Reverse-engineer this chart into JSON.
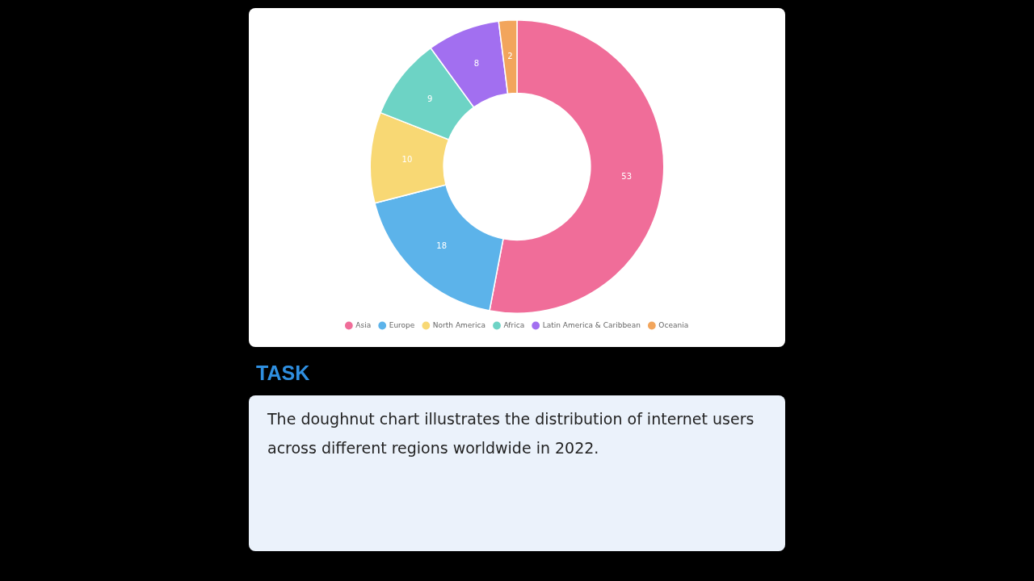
{
  "chart_data": {
    "type": "donut",
    "categories": [
      "Asia",
      "Europe",
      "North America",
      "Africa",
      "Latin America & Caribbean",
      "Oceania"
    ],
    "values": [
      53,
      18,
      10,
      9,
      8,
      2
    ],
    "colors": [
      "#f06d99",
      "#5cb3ea",
      "#f8d874",
      "#6dd3c5",
      "#a26ff0",
      "#f2a55c"
    ],
    "data_labels": true,
    "legend": "bottom",
    "annotations": [
      "TASK",
      "The doughnut chart illustrates the distribution of internet users across different regions worldwide in 2022."
    ]
  }
}
